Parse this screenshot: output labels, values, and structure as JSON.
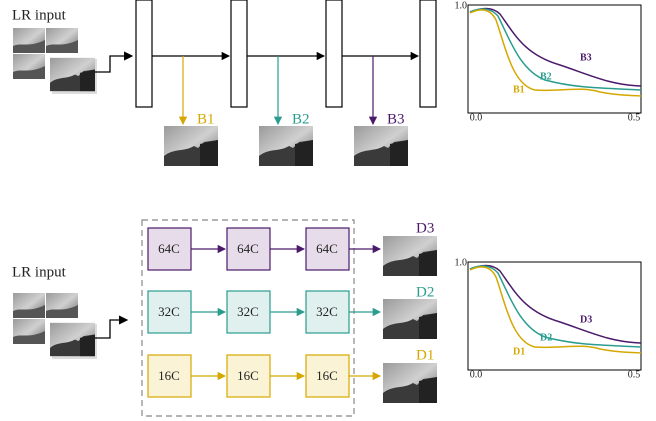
{
  "top": {
    "input_label": "LR input",
    "branches": [
      "B1",
      "B2",
      "B3"
    ],
    "plot": {
      "y_tick": "1.0",
      "x_ticks": [
        "0.0",
        "0.5"
      ],
      "curve_labels": [
        "B1",
        "B2",
        "B3"
      ]
    }
  },
  "bottom": {
    "input_label": "LR input",
    "rows": [
      {
        "cells": [
          "64C",
          "64C",
          "64C"
        ],
        "output": "D3"
      },
      {
        "cells": [
          "32C",
          "32C",
          "32C"
        ],
        "output": "D2"
      },
      {
        "cells": [
          "16C",
          "16C",
          "16C"
        ],
        "output": "D1"
      }
    ],
    "plot": {
      "y_tick": "1.0",
      "x_ticks": [
        "0.0",
        "0.5"
      ],
      "curve_labels": [
        "D1",
        "D2",
        "D3"
      ]
    }
  }
}
